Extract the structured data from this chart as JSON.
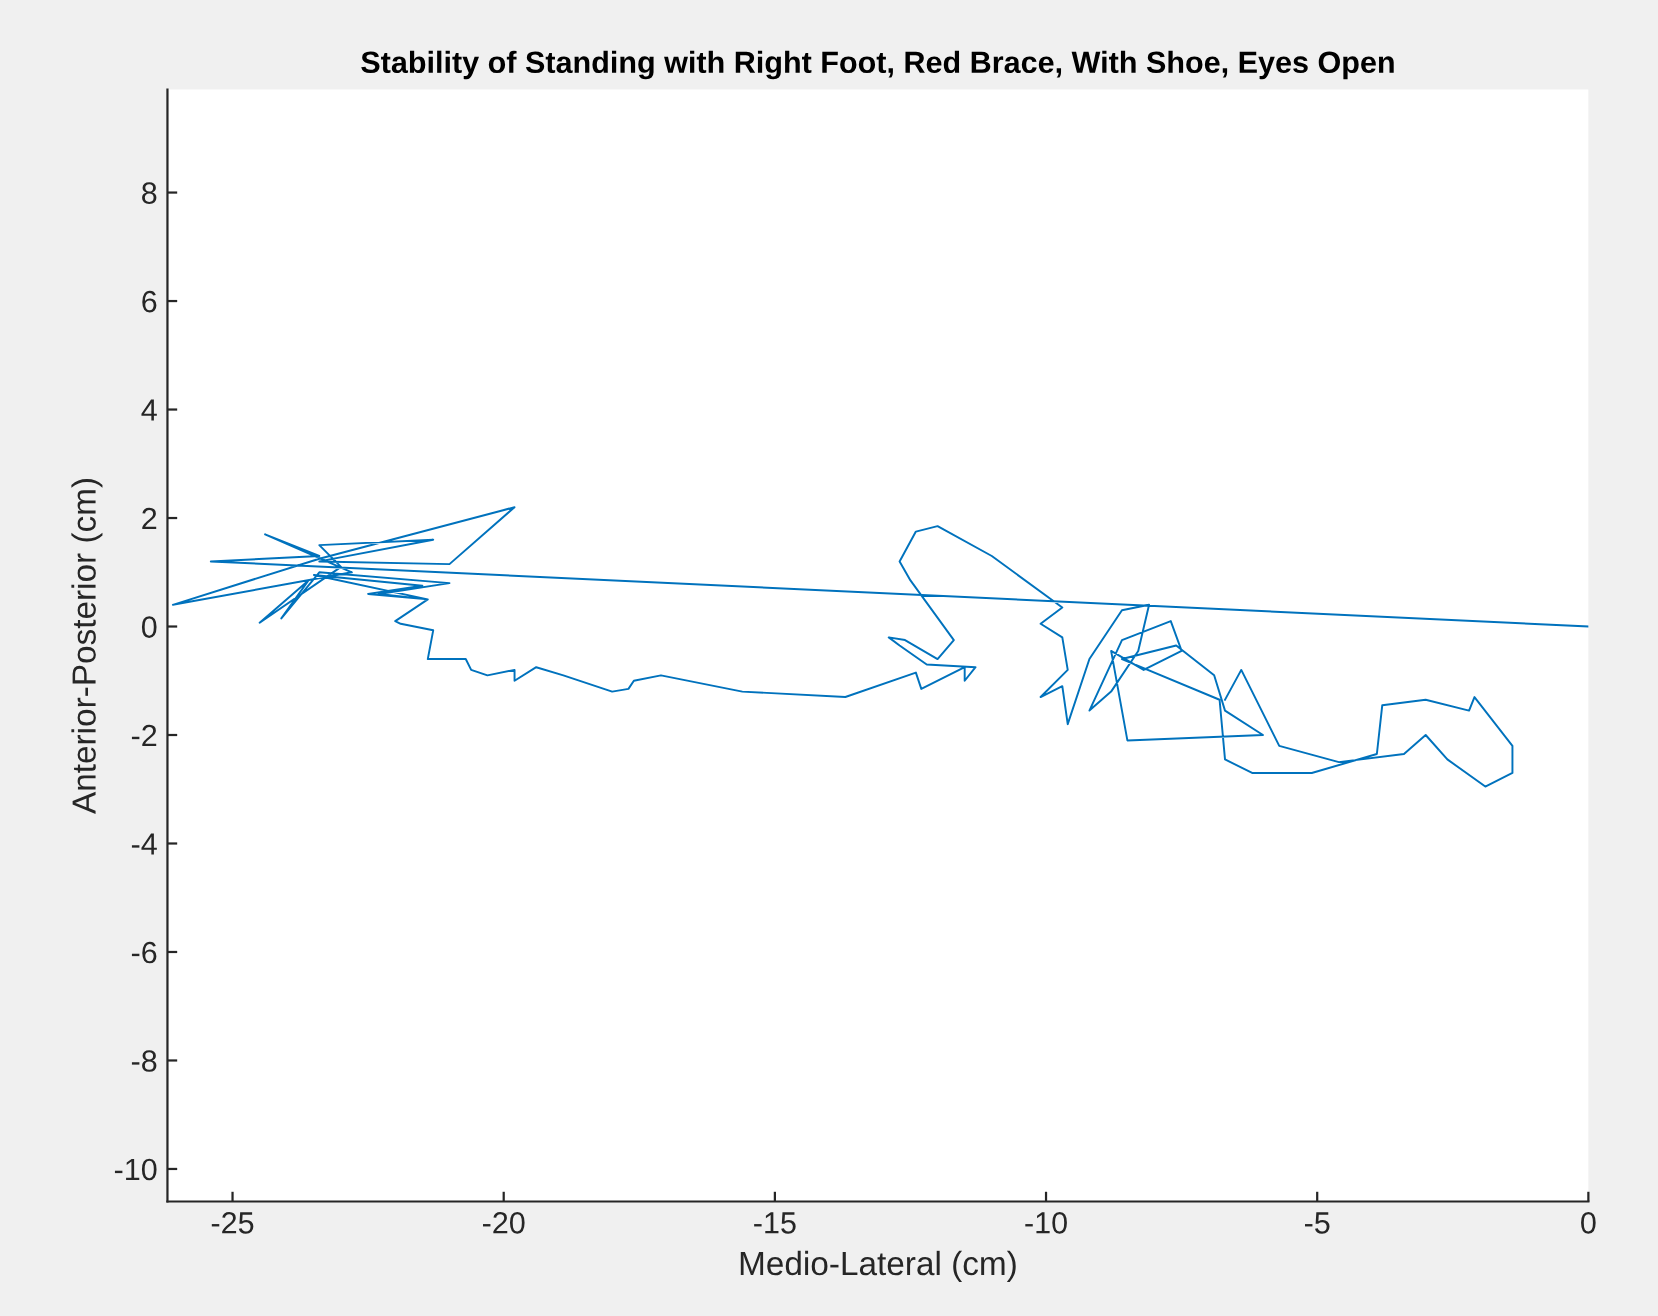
{
  "chart_data": {
    "type": "line",
    "title": "Stability of Standing with Right Foot, Red Brace, With Shoe, Eyes Open",
    "xlabel": "Medio-Lateral (cm)",
    "ylabel": "Anterior-Posterior (cm)",
    "xlim": [
      -26.2,
      0
    ],
    "ylim": [
      -10.6,
      9.9
    ],
    "xticks": [
      -25,
      -20,
      -15,
      -10,
      -5,
      0
    ],
    "yticks": [
      -10,
      -8,
      -6,
      -4,
      -2,
      0,
      2,
      4,
      6,
      8
    ],
    "grid": false,
    "marker": "none",
    "line_style": "solid",
    "series": [
      {
        "color": "#0072bd",
        "x": [
          0,
          -25.4,
          -23.4,
          -24.4,
          -22.8,
          -26.1,
          -23.4,
          -19.8,
          -21.0,
          -23.4,
          -21.3,
          -23.4,
          -23.0,
          -24.5,
          -23.6,
          -24.1,
          -23.4,
          -21.0,
          -22.3,
          -21.4,
          -23.5,
          -21.5,
          -22.5,
          -21.4,
          -22.0,
          -21.9,
          -21.3,
          -21.4,
          -20.7,
          -20.6,
          -20.3,
          -19.8,
          -19.8,
          -19.4,
          -18.9,
          -18.0,
          -17.7,
          -17.6,
          -17.1,
          -15.6,
          -13.7,
          -12.4,
          -12.3,
          -11.5,
          -11.5,
          -11.3,
          -12.2,
          -12.7,
          -12.9,
          -12.6,
          -12.0,
          -11.7,
          -12.5,
          -12.7,
          -12.4,
          -12.0,
          -11.0,
          -9.7,
          -10.1,
          -9.7,
          -9.6,
          -10.1,
          -9.7,
          -9.6,
          -9.2,
          -8.6,
          -8.1,
          -8.3,
          -8.8,
          -9.2,
          -8.6,
          -7.7,
          -7.5,
          -8.2,
          -8.8,
          -8.5,
          -6.0,
          -6.7,
          -6.9,
          -7.6,
          -8.6,
          -6.8,
          -6.7,
          -6.2,
          -5.1,
          -3.9,
          -3.8,
          -3.0,
          -2.2,
          -2.1,
          -1.4,
          -1.4,
          -1.9,
          -2.6,
          -3.0,
          -3.4,
          -4.6,
          -5.7,
          -6.4,
          -6.7
        ],
        "values": [
          0,
          1.2,
          1.3,
          1.7,
          1.0,
          0.4,
          1.25,
          2.2,
          1.15,
          1.2,
          1.6,
          1.5,
          1.1,
          0.07,
          0.85,
          0.15,
          1.0,
          0.8,
          0.6,
          0.5,
          0.95,
          0.75,
          0.6,
          0.5,
          0.1,
          0.05,
          -0.07,
          -0.6,
          -0.6,
          -0.8,
          -0.9,
          -0.8,
          -1.0,
          -0.75,
          -0.9,
          -1.2,
          -1.15,
          -1.0,
          -0.9,
          -1.2,
          -1.3,
          -0.85,
          -1.15,
          -0.75,
          -1.0,
          -0.75,
          -0.7,
          -0.35,
          -0.2,
          -0.25,
          -0.6,
          -0.25,
          0.85,
          1.2,
          1.75,
          1.85,
          1.3,
          0.35,
          0.05,
          -0.2,
          -0.8,
          -1.3,
          -1.1,
          -1.8,
          -0.6,
          0.3,
          0.4,
          -0.45,
          -1.2,
          -1.55,
          -0.25,
          0.1,
          -0.45,
          -0.8,
          -0.45,
          -2.1,
          -2.0,
          -1.55,
          -0.9,
          -0.35,
          -0.6,
          -1.35,
          -2.45,
          -2.7,
          -2.7,
          -2.35,
          -1.45,
          -1.35,
          -1.55,
          -1.3,
          -2.2,
          -2.7,
          -2.95,
          -2.45,
          -2.0,
          -2.35,
          -2.5,
          -2.2,
          -0.8,
          -1.35
        ]
      }
    ]
  }
}
